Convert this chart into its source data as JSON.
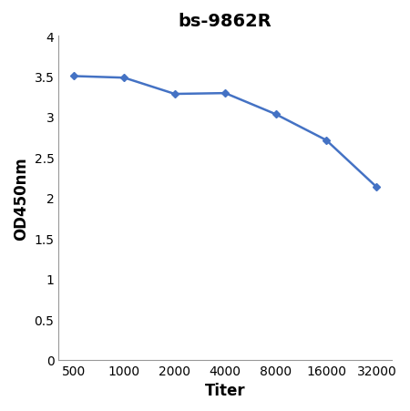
{
  "title": "bs-9862R",
  "xlabel": "Titer",
  "ylabel": "OD450nm",
  "x_positions": [
    0,
    1,
    2,
    3,
    4,
    5,
    6
  ],
  "y_values": [
    3.5,
    3.48,
    3.28,
    3.29,
    3.03,
    2.71,
    2.13
  ],
  "x_tick_labels": [
    "500",
    "1000",
    "2000",
    "4000",
    "8000",
    "16000",
    "32000"
  ],
  "ylim": [
    0,
    4.0
  ],
  "yticks": [
    0,
    0.5,
    1.0,
    1.5,
    2.0,
    2.5,
    3.0,
    3.5,
    4.0
  ],
  "ytick_labels": [
    "0",
    "0.5",
    "1",
    "1.5",
    "2",
    "2.5",
    "3",
    "3.5",
    "4"
  ],
  "line_color": "#4472C4",
  "marker": "D",
  "marker_size": 4,
  "line_width": 1.8,
  "title_fontsize": 14,
  "axis_label_fontsize": 12,
  "tick_fontsize": 10,
  "background_color": "#ffffff"
}
